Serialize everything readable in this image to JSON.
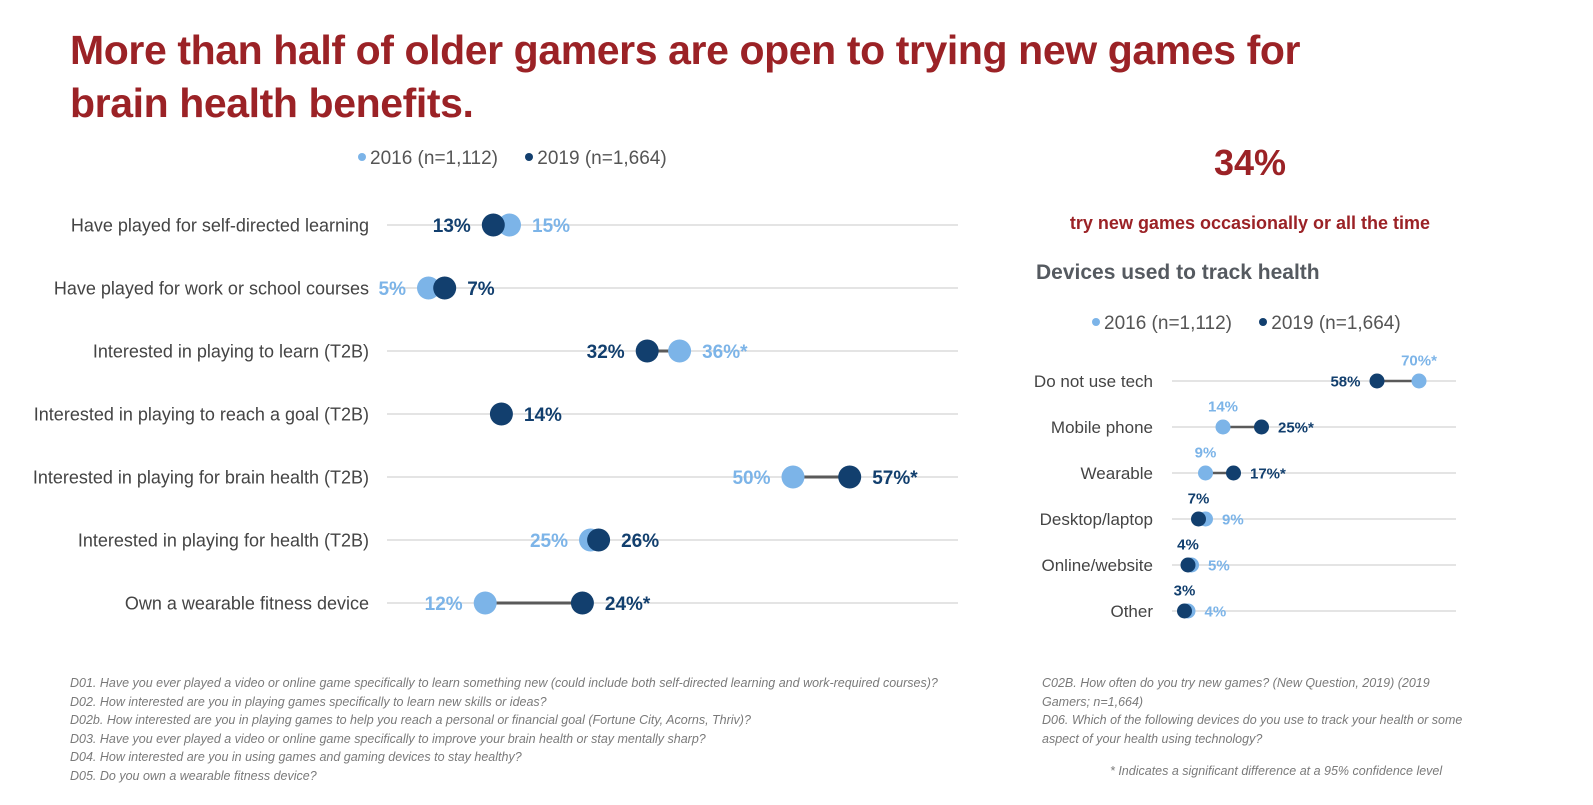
{
  "title": "More than half of older gamers are open to trying new games for brain health benefits.",
  "colors": {
    "y2016": "#7cb4e8",
    "y2019": "#123f6e",
    "accent": "#9b2226",
    "connector": "#5a5a5a",
    "grid": "#dcdcdc"
  },
  "legend": [
    {
      "key": "y2016",
      "label": "2016 (n=1,112)"
    },
    {
      "key": "y2019",
      "label": "2019 (n=1,664)"
    }
  ],
  "stat": {
    "value": "34%",
    "caption": "try new games occasionally or all the time"
  },
  "devices_heading": "Devices used to track health",
  "chart_data": [
    {
      "type": "dumbbell",
      "title": "",
      "unit": "%",
      "xlim": [
        0,
        70
      ],
      "series": [
        {
          "name": "2016 (n=1,112)",
          "key": "y2016"
        },
        {
          "name": "2019 (n=1,664)",
          "key": "y2019"
        }
      ],
      "categories": [
        "Have played for self-directed learning",
        "Have played for work or school courses",
        "Interested in playing to learn (T2B)",
        "Interested in playing to reach a goal (T2B)",
        "Interested in playing for brain health (T2B)",
        "Interested in playing for health (T2B)",
        "Own a wearable fitness device"
      ],
      "rows": [
        {
          "y2016": 15,
          "y2019": 13,
          "label2016": "15%",
          "label2019": "13%"
        },
        {
          "y2016": 5,
          "y2019": 7,
          "label2016": "5%",
          "label2019": "7%"
        },
        {
          "y2016": 36,
          "y2019": 32,
          "label2016": "36%*",
          "label2019": "32%"
        },
        {
          "y2016": null,
          "y2019": 14,
          "label2016": null,
          "label2019": "14%"
        },
        {
          "y2016": 50,
          "y2019": 57,
          "label2016": "50%",
          "label2019": "57%*"
        },
        {
          "y2016": 25,
          "y2019": 26,
          "label2016": "25%",
          "label2019": "26%"
        },
        {
          "y2016": 12,
          "y2019": 24,
          "label2016": "12%",
          "label2019": "24%*"
        }
      ],
      "legend_position": "top"
    },
    {
      "type": "dumbbell",
      "title": "Devices used to track health",
      "unit": "%",
      "xlim": [
        0,
        80
      ],
      "series": [
        {
          "name": "2016 (n=1,112)",
          "key": "y2016"
        },
        {
          "name": "2019 (n=1,664)",
          "key": "y2019"
        }
      ],
      "categories": [
        "Do not use tech",
        "Mobile phone",
        "Wearable",
        "Desktop/laptop",
        "Online/website",
        "Other"
      ],
      "rows": [
        {
          "y2016": 70,
          "y2019": 58,
          "label2016": "70%*",
          "label2019": "58%"
        },
        {
          "y2016": 14,
          "y2019": 25,
          "label2016": "14%",
          "label2019": "25%*"
        },
        {
          "y2016": 9,
          "y2019": 17,
          "label2016": "9%",
          "label2019": "17%*"
        },
        {
          "y2016": 9,
          "y2019": 7,
          "label2016": "9%",
          "label2019": "7%"
        },
        {
          "y2016": 5,
          "y2019": 4,
          "label2016": "5%",
          "label2019": "4%"
        },
        {
          "y2016": 4,
          "y2019": 3,
          "label2016": "4%",
          "label2019": "3%"
        }
      ],
      "legend_position": "top"
    }
  ],
  "footnotes_left": [
    "D01. Have you ever played a video or online game specifically to learn something new (could include both self-directed learning and work-required courses)?",
    "D02. How interested are you in playing games specifically to learn new skills or ideas?",
    "D02b. How interested are you in playing games to help you reach a personal or financial goal (Fortune City, Acorns, Thriv)?",
    "D03. Have you ever played a video or online game specifically to improve your brain health or stay mentally sharp?",
    "D04. How interested are you in using games and gaming devices to stay healthy?",
    "D05. Do you own a wearable fitness device?"
  ],
  "footnotes_right": [
    "C02B. How often do you try new games? (New Question, 2019) (2019 Gamers; n=1,664)",
    "D06. Which of the following devices do you use to track your health or some aspect of your health using technology?"
  ],
  "significance_note": "* Indicates a significant difference at a 95% confidence level"
}
